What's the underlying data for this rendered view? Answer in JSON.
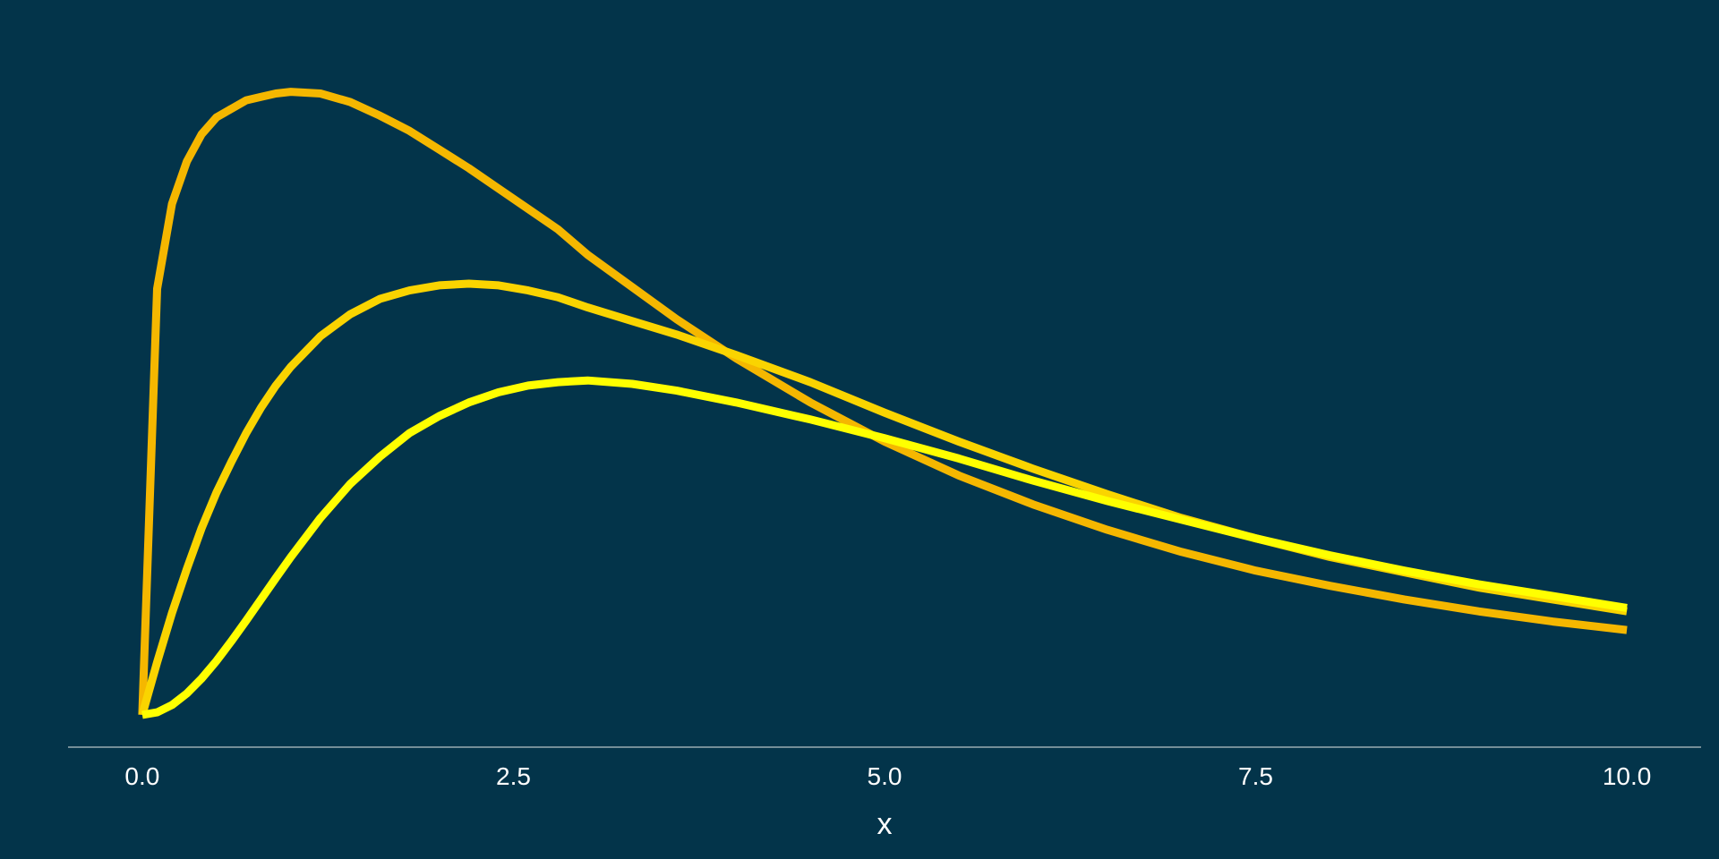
{
  "chart_data": {
    "type": "line",
    "title": "",
    "xlabel": "x",
    "ylabel": "",
    "xlim": [
      -0.5,
      10.5
    ],
    "ylim": [
      -0.019,
      0.4
    ],
    "x_ticks": [
      "0.0",
      "2.5",
      "5.0",
      "7.5",
      "10.0"
    ],
    "x_tick_values": [
      0,
      2.5,
      5,
      7.5,
      10
    ],
    "grid": false,
    "background": "#03344a",
    "axis_color": "#b9c3c8",
    "text_color": "#ffffff",
    "x": [
      0,
      0.1,
      0.2,
      0.3,
      0.4,
      0.5,
      0.6,
      0.7,
      0.8,
      0.9,
      1,
      1.2,
      1.4,
      1.6,
      1.8,
      2,
      2.2,
      2.4,
      2.6,
      2.8,
      3,
      3.3,
      3.6,
      4,
      4.5,
      5,
      5.5,
      6,
      6.5,
      7,
      7.5,
      8,
      8.5,
      9,
      9.5,
      10
    ],
    "series": [
      {
        "color": "#f5b700",
        "values": [
          0,
          0.251,
          0.301,
          0.326,
          0.342,
          0.352,
          0.357,
          0.362,
          0.364,
          0.366,
          0.367,
          0.366,
          0.361,
          0.353,
          0.344,
          0.333,
          0.322,
          0.31,
          0.298,
          0.286,
          0.271,
          0.252,
          0.233,
          0.21,
          0.184,
          0.161,
          0.141,
          0.124,
          0.109,
          0.096,
          0.085,
          0.076,
          0.068,
          0.061,
          0.055,
          0.05
        ]
      },
      {
        "color": "#fad400",
        "values": [
          0,
          0.031,
          0.06,
          0.086,
          0.11,
          0.131,
          0.149,
          0.166,
          0.181,
          0.194,
          0.205,
          0.223,
          0.236,
          0.245,
          0.25,
          0.253,
          0.254,
          0.253,
          0.25,
          0.246,
          0.24,
          0.232,
          0.224,
          0.212,
          0.196,
          0.178,
          0.161,
          0.145,
          0.13,
          0.116,
          0.104,
          0.093,
          0.084,
          0.075,
          0.068,
          0.061
        ]
      },
      {
        "color": "#ffff00",
        "values": [
          0,
          0.0015,
          0.0058,
          0.0126,
          0.0214,
          0.0318,
          0.0434,
          0.0556,
          0.0681,
          0.0806,
          0.0929,
          0.116,
          0.136,
          0.152,
          0.166,
          0.176,
          0.184,
          0.19,
          0.194,
          0.196,
          0.197,
          0.195,
          0.191,
          0.184,
          0.174,
          0.163,
          0.151,
          0.138,
          0.126,
          0.115,
          0.104,
          0.094,
          0.085,
          0.077,
          0.07,
          0.063
        ]
      }
    ]
  }
}
